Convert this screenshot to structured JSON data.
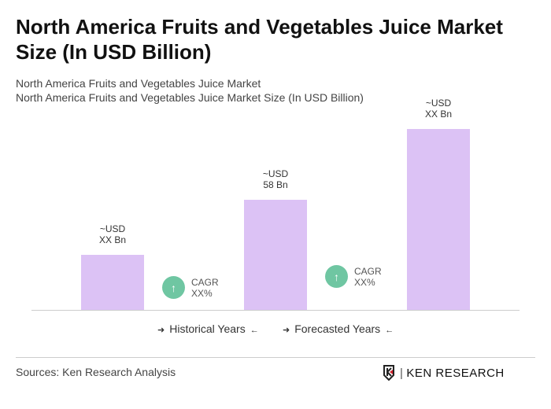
{
  "title": "North America Fruits and Vegetables Juice Market Size (In USD Billion)",
  "subtitle1": "North America Fruits and Vegetables Juice Market",
  "subtitle2": "North America Fruits and Vegetables Juice Market Size (In USD Billion)",
  "chart_data": {
    "type": "bar",
    "bars": [
      {
        "label_line1": "~USD",
        "label_line2": "XX Bn",
        "value": 29
      },
      {
        "label_line1": "~USD",
        "label_line2": "58 Bn",
        "value": 58
      },
      {
        "label_line1": "~USD",
        "label_line2": "XX Bn",
        "value": 95
      }
    ],
    "cagr": [
      {
        "line1": "CAGR",
        "line2": "XX%"
      },
      {
        "line1": "CAGR",
        "line2": "XX%"
      }
    ],
    "legend": {
      "historical": "Historical Years",
      "forecasted": "Forecasted Years"
    },
    "bar_color": "#dcc2f5",
    "cagr_color": "#6fc6a2",
    "ylim": [
      0,
      100
    ],
    "grid": false
  },
  "footer": {
    "source": "Sources: Ken Research Analysis",
    "logo": "KEN RESEARCH"
  }
}
